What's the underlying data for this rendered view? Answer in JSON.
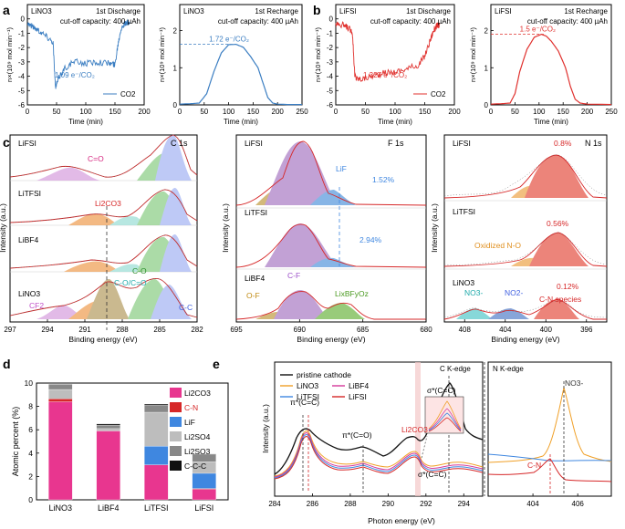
{
  "panel_labels": {
    "a": "a",
    "b": "b",
    "c": "c",
    "d": "d",
    "e": "e"
  },
  "chart_data": [
    {
      "id": "a1",
      "type": "line",
      "panel": "a",
      "title": "1st Discharge",
      "corner_label": "LiNO3",
      "subtitle": "cut-off capacity: 400 µAh",
      "xlabel": "Time (min)",
      "ylabel": "n×(10⁹ mol min⁻¹)",
      "xlim": [
        0,
        200
      ],
      "ylim": [
        -6,
        1
      ],
      "xticks": [
        0,
        50,
        100,
        150,
        200
      ],
      "yticks": [
        0,
        -1,
        -2,
        -3,
        -4,
        -5,
        -6
      ],
      "legend": "CO2",
      "color": "#3b7ec2",
      "annotation": "1.09 e⁻/CO₂",
      "series": [
        {
          "name": "CO2",
          "x": [
            0,
            8,
            20,
            32,
            44,
            48,
            55,
            65,
            80,
            100,
            120,
            140,
            150,
            155,
            160,
            165,
            170,
            175
          ],
          "y": [
            -0.3,
            -0.5,
            -0.8,
            -1.2,
            -1.6,
            -4.8,
            -4.0,
            -3.4,
            -3.0,
            -3.1,
            -3.0,
            -3.1,
            -3.2,
            -1.8,
            -0.7,
            -0.4,
            -0.3,
            -0.3
          ]
        }
      ]
    },
    {
      "id": "a2",
      "type": "line",
      "panel": "a",
      "title": "1st Recharge",
      "corner_label": "LiNO3",
      "subtitle": "cut-off capacity: 400 µAh",
      "xlabel": "Time (min)",
      "ylabel": "n×(10⁹ mol min⁻¹)",
      "xlim": [
        0,
        250
      ],
      "ylim": [
        0,
        2.7
      ],
      "xticks": [
        0,
        50,
        100,
        150,
        200,
        250
      ],
      "yticks": [
        0,
        1,
        2
      ],
      "color": "#3b7ec2",
      "annotation": "1.72 e⁻/CO₂",
      "series": [
        {
          "name": "CO2",
          "x": [
            0,
            20,
            40,
            55,
            70,
            85,
            100,
            115,
            130,
            145,
            160,
            170,
            180,
            190,
            200,
            220,
            250
          ],
          "y": [
            0.02,
            0.03,
            0.05,
            0.3,
            0.9,
            1.4,
            1.62,
            1.63,
            1.55,
            1.3,
            1.0,
            0.6,
            0.2,
            0.05,
            0.02,
            0.01,
            0.01
          ]
        }
      ]
    },
    {
      "id": "b1",
      "type": "line",
      "panel": "b",
      "title": "1st Discharge",
      "corner_label": "LiFSI",
      "subtitle": "cut-off capacity: 400 µAh",
      "xlabel": "Time (min)",
      "ylabel": "n×(10⁹ mol min⁻¹)",
      "xlim": [
        0,
        200
      ],
      "ylim": [
        -6,
        1
      ],
      "xticks": [
        0,
        50,
        100,
        150,
        200
      ],
      "yticks": [
        0,
        -1,
        -2,
        -3,
        -4,
        -5,
        -6
      ],
      "legend": "CO2",
      "color": "#e0312e",
      "annotation": "1.327 e⁻/CO₂",
      "series": [
        {
          "name": "CO2",
          "x": [
            0,
            10,
            20,
            28,
            32,
            35,
            45,
            60,
            80,
            100,
            120,
            140,
            150,
            160,
            165,
            170,
            175
          ],
          "y": [
            -0.3,
            -0.4,
            -0.6,
            -0.9,
            -3.9,
            -4.2,
            -4.2,
            -4.0,
            -3.8,
            -3.7,
            -3.5,
            -3.2,
            -2.6,
            -1.4,
            -0.8,
            -0.5,
            -0.4
          ]
        }
      ]
    },
    {
      "id": "b2",
      "type": "line",
      "panel": "b",
      "title": "1st Recharge",
      "corner_label": "LiFSI",
      "subtitle": "cut-off capacity: 400 µAh",
      "xlabel": "Time (min)",
      "ylabel": "n×(10⁹ mol min⁻¹)",
      "xlim": [
        0,
        250
      ],
      "ylim": [
        0,
        2.7
      ],
      "xticks": [
        0,
        50,
        100,
        150,
        200,
        250
      ],
      "yticks": [
        0,
        1,
        2
      ],
      "color": "#e0312e",
      "annotation": "1.5 e⁻/CO₂",
      "series": [
        {
          "name": "CO2",
          "x": [
            0,
            20,
            40,
            50,
            60,
            75,
            90,
            105,
            115,
            125,
            140,
            155,
            165,
            175,
            185,
            200,
            250
          ],
          "y": [
            0.02,
            0.03,
            0.05,
            0.3,
            0.9,
            1.5,
            1.82,
            1.9,
            1.85,
            1.72,
            1.45,
            1.0,
            0.5,
            0.15,
            0.05,
            0.02,
            0.01
          ]
        }
      ]
    },
    {
      "id": "c1",
      "type": "line",
      "panel": "c",
      "title": "C 1s",
      "xlabel": "Binding energy (eV)",
      "ylabel": "Intensity (a.u.)",
      "xlim": [
        297,
        282
      ],
      "xticks": [
        297,
        294,
        291,
        288,
        285,
        282
      ],
      "rows": [
        "LiFSI",
        "LiTFSI",
        "LiBF4",
        "LiNO3"
      ],
      "annotations": [
        "C=O",
        "Li2CO3",
        "C-O",
        "C-O/C=O",
        "CF2",
        "C-C"
      ]
    },
    {
      "id": "c2",
      "type": "line",
      "panel": "c",
      "title": "F 1s",
      "xlabel": "Binding energy (eV)",
      "ylabel": "Intensity (a.u.)",
      "xlim": [
        695,
        680
      ],
      "xticks": [
        695,
        690,
        685,
        680
      ],
      "rows": [
        "LiFSI",
        "LiTFSI",
        "LiBF4"
      ],
      "annotations": [
        "LiF",
        "1.52%",
        "2.94%",
        "O-F",
        "C-F",
        "LixBFyOz"
      ]
    },
    {
      "id": "c3",
      "type": "line",
      "panel": "c",
      "title": "N 1s",
      "xlabel": "Binding energy (eV)",
      "ylabel": "Intensity (a.u.)",
      "xlim": [
        410,
        394
      ],
      "xticks": [
        408,
        404,
        400,
        396
      ],
      "rows": [
        "LiFSI",
        "LiTFSI",
        "LiNO3"
      ],
      "annotations": [
        "0.8%",
        "0.56%",
        "Oxidized N-O",
        "NO3-",
        "NO2-",
        "0.12%",
        "C-N species"
      ]
    },
    {
      "id": "d",
      "type": "bar",
      "panel": "d",
      "stacked": true,
      "ylabel": "Atomic percent (%)",
      "ylim": [
        0,
        10
      ],
      "yticks": [
        0,
        2,
        4,
        6,
        8,
        10
      ],
      "categories": [
        "LiNO3",
        "LiBF4",
        "LiTFSI",
        "LiFSI"
      ],
      "series": [
        {
          "name": "Li2CO3",
          "color": "#e8368f",
          "values": [
            8.4,
            5.9,
            3.0,
            0.9
          ]
        },
        {
          "name": "C-N",
          "color": "#d62728",
          "values": [
            0.25,
            0.0,
            0.0,
            0.07
          ]
        },
        {
          "name": "LiF",
          "color": "#3f87e0",
          "values": [
            0.0,
            0.0,
            1.6,
            1.3
          ]
        },
        {
          "name": "Li2SO4",
          "color": "#bdbdbd",
          "values": [
            0.8,
            0.2,
            2.9,
            1.0
          ]
        },
        {
          "name": "Li2SO3",
          "color": "#888888",
          "values": [
            0.45,
            0.3,
            0.6,
            0.6
          ]
        },
        {
          "name": "C-C-C",
          "color": "#111111",
          "values": [
            0.0,
            0.1,
            0.1,
            0.05
          ]
        }
      ]
    },
    {
      "id": "e1",
      "type": "line",
      "panel": "e",
      "title": "C K-edge",
      "xlabel": "Photon energy (eV)",
      "ylabel": "Intensity (a.u.)",
      "xlim": [
        284,
        295
      ],
      "xticks": [
        284,
        286,
        288,
        290,
        292,
        294
      ],
      "legend": [
        "pristine cathode",
        "LiNO3",
        "LiBF4",
        "LiTFSI",
        "LiFSI"
      ],
      "annotations": [
        "π*(C=C)",
        "π*(C=O)",
        "Li2CO3",
        "σ*(C=C)",
        "σ*(C=C)"
      ]
    },
    {
      "id": "e2",
      "type": "line",
      "panel": "e",
      "title": "N K-edge",
      "xlim": [
        402,
        407.5
      ],
      "xticks": [
        404,
        406
      ],
      "annotations": [
        "NO3-",
        "C-N"
      ]
    }
  ]
}
